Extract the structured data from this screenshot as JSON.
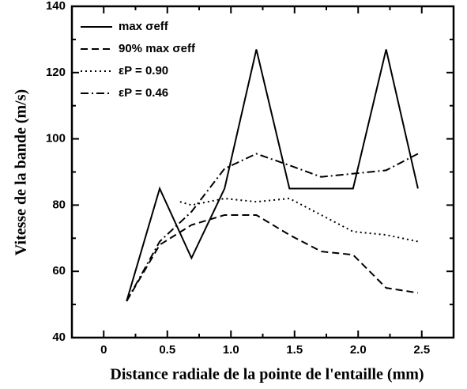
{
  "chart_data": {
    "type": "line",
    "xlabel": "Distance radiale de la pointe de l'entaille (mm)",
    "ylabel": "Vitesse de la bande (m/s)",
    "xlim": [
      -0.25,
      2.75
    ],
    "ylim": [
      40,
      140
    ],
    "xticks": [
      0,
      0.5,
      {
        "value": 1,
        "label": "1.0"
      },
      {
        "value": 1.5,
        "label": "1.5"
      },
      {
        "value": 2,
        "label": "2.0"
      },
      2.5
    ],
    "xminorticks": [
      -0.25,
      0.25,
      0.75,
      1.25,
      1.75,
      2.25,
      2.75
    ],
    "yticks": [
      40,
      60,
      80,
      100,
      120,
      140
    ],
    "yminorticks": [
      50,
      70,
      90,
      110,
      130
    ],
    "legend": "upper left",
    "series": [
      {
        "name": "max σeff",
        "color": "#000",
        "dash": "solid",
        "x": [
          0.18,
          0.44,
          0.69,
          0.95,
          1.2,
          1.46,
          1.96,
          2.22,
          2.47
        ],
        "values": [
          51,
          85,
          64,
          85,
          127,
          85,
          85,
          127,
          85
        ]
      },
      {
        "name": "90% max σeff",
        "color": "#000",
        "dash": "dashed",
        "x": [
          0.18,
          0.44,
          0.69,
          0.95,
          1.2,
          1.46,
          1.71,
          1.96,
          2.22,
          2.47
        ],
        "values": [
          51,
          68,
          74,
          77,
          77,
          71,
          66,
          65,
          55,
          53.5
        ]
      },
      {
        "name": "εP = 0.90",
        "color": "#000",
        "dash": "dotted",
        "x": [
          0.6,
          0.69,
          0.95,
          1.2,
          1.46,
          1.71,
          1.96,
          2.22,
          2.47
        ],
        "values": [
          81,
          80,
          82,
          81,
          82,
          77,
          72,
          71,
          69
        ]
      },
      {
        "name": "εP = 0.46",
        "color": "#000",
        "dash": "dashdot",
        "x": [
          0.18,
          0.44,
          0.69,
          0.95,
          1.2,
          1.46,
          1.71,
          1.96,
          2.22,
          2.47
        ],
        "values": [
          51,
          69,
          78,
          91,
          95.5,
          92,
          88.5,
          89.5,
          90.5,
          95.5
        ]
      }
    ]
  }
}
